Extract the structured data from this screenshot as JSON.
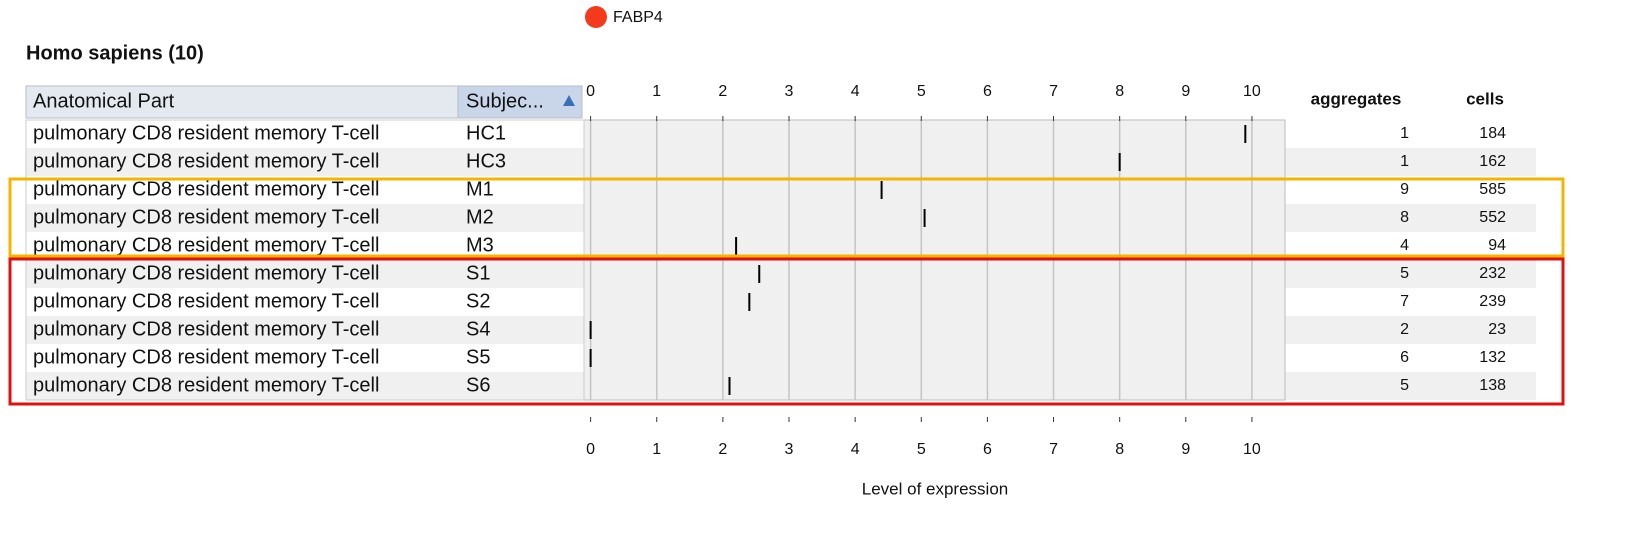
{
  "legend": {
    "label": "FABP4",
    "color": "#f5391c"
  },
  "title": "Homo sapiens (10)",
  "table": {
    "headers": [
      "Anatomical Part",
      "Subjec...",
      "aggregates",
      "cells"
    ],
    "rows": [
      [
        "pulmonary CD8 resident memory T-cell",
        "HC1",
        1,
        184
      ],
      [
        "pulmonary CD8 resident memory T-cell",
        "HC3",
        1,
        162
      ],
      [
        "pulmonary CD8 resident memory T-cell",
        "M1",
        9,
        585
      ],
      [
        "pulmonary CD8 resident memory T-cell",
        "M2",
        8,
        552
      ],
      [
        "pulmonary CD8 resident memory T-cell",
        "M3",
        4,
        94
      ],
      [
        "pulmonary CD8 resident memory T-cell",
        "S1",
        5,
        232
      ],
      [
        "pulmonary CD8 resident memory T-cell",
        "S2",
        7,
        239
      ],
      [
        "pulmonary CD8 resident memory T-cell",
        "S4",
        2,
        23
      ],
      [
        "pulmonary CD8 resident memory T-cell",
        "S5",
        6,
        132
      ],
      [
        "pulmonary CD8 resident memory T-cell",
        "S6",
        5,
        138
      ]
    ]
  },
  "chart_data": {
    "type": "strip",
    "x_label": "Level of expression",
    "values": [
      9.9,
      8.0,
      4.4,
      5.05,
      2.2,
      2.55,
      2.4,
      0,
      0,
      2.1
    ],
    "color": "#000000",
    "xlim": [
      -0.1,
      10.5
    ],
    "xticks": [
      0,
      1,
      2,
      3,
      4,
      5,
      6,
      7,
      8,
      9,
      10
    ],
    "grid": true
  }
}
